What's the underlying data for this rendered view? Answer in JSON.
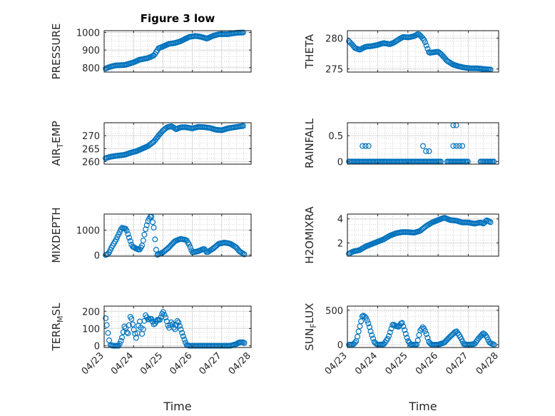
{
  "figure": {
    "title": "Figure 3 low"
  },
  "colors": {
    "marker": "#0072BD",
    "axis": "#262626",
    "grid": "#d9d9d9",
    "minor_grid": "#b0b0b0"
  },
  "chart_data": [
    {
      "type": "scatter",
      "panel": "top-left",
      "ylabel": "PRESSURE",
      "title": "Figure 3 low",
      "ylim": [
        775,
        1010
      ],
      "yticks": [
        800,
        900,
        1000
      ],
      "xlim": [
        0,
        5
      ],
      "show_xticks": false,
      "grid": true,
      "x_start": 0.05,
      "x_end": 4.75,
      "y_anchors": [
        [
          0.05,
          795
        ],
        [
          0.2,
          805
        ],
        [
          0.4,
          813
        ],
        [
          0.7,
          815
        ],
        [
          1.0,
          830
        ],
        [
          1.2,
          845
        ],
        [
          1.5,
          855
        ],
        [
          1.7,
          870
        ],
        [
          1.85,
          910
        ],
        [
          2.0,
          920
        ],
        [
          2.2,
          935
        ],
        [
          2.4,
          940
        ],
        [
          2.6,
          950
        ],
        [
          2.9,
          975
        ],
        [
          3.1,
          980
        ],
        [
          3.3,
          975
        ],
        [
          3.5,
          965
        ],
        [
          3.7,
          980
        ],
        [
          3.9,
          990
        ],
        [
          4.2,
          990
        ],
        [
          4.5,
          998
        ],
        [
          4.75,
          1000
        ]
      ]
    },
    {
      "type": "scatter",
      "panel": "top-right",
      "ylabel": "THETA",
      "ylim": [
        274.5,
        281.2
      ],
      "yticks": [
        275,
        280
      ],
      "xlim": [
        0,
        5
      ],
      "show_xticks": false,
      "grid": true,
      "x_start": 0.05,
      "x_end": 4.75,
      "y_anchors": [
        [
          0.05,
          279.5
        ],
        [
          0.15,
          279.0
        ],
        [
          0.25,
          278.4
        ],
        [
          0.4,
          278.1
        ],
        [
          0.6,
          278.6
        ],
        [
          0.8,
          278.7
        ],
        [
          1.0,
          278.9
        ],
        [
          1.2,
          279.2
        ],
        [
          1.4,
          279.0
        ],
        [
          1.55,
          279.3
        ],
        [
          1.7,
          279.8
        ],
        [
          1.85,
          280.2
        ],
        [
          2.0,
          280.1
        ],
        [
          2.2,
          280.3
        ],
        [
          2.35,
          280.7
        ],
        [
          2.45,
          280.2
        ],
        [
          2.55,
          279.6
        ],
        [
          2.7,
          277.6
        ],
        [
          2.85,
          277.7
        ],
        [
          3.0,
          277.8
        ],
        [
          3.1,
          277.4
        ],
        [
          3.3,
          276.3
        ],
        [
          3.5,
          275.7
        ],
        [
          3.7,
          275.4
        ],
        [
          3.9,
          275.2
        ],
        [
          4.1,
          275.1
        ],
        [
          4.3,
          275.1
        ],
        [
          4.5,
          275.0
        ],
        [
          4.75,
          274.9
        ]
      ]
    },
    {
      "type": "scatter",
      "panel": "row2-left",
      "ylabel": "AIR_TEMP",
      "ylim": [
        259,
        275
      ],
      "yticks": [
        260,
        265,
        270
      ],
      "xlim": [
        0,
        5
      ],
      "show_xticks": false,
      "grid": true,
      "x_start": 0.05,
      "x_end": 4.75,
      "y_anchors": [
        [
          0.05,
          261.3
        ],
        [
          0.2,
          261.8
        ],
        [
          0.4,
          262.2
        ],
        [
          0.7,
          262.6
        ],
        [
          0.9,
          263.4
        ],
        [
          1.1,
          264.0
        ],
        [
          1.3,
          265.0
        ],
        [
          1.5,
          266.0
        ],
        [
          1.7,
          267.8
        ],
        [
          1.85,
          270.0
        ],
        [
          2.0,
          272.0
        ],
        [
          2.15,
          273.3
        ],
        [
          2.3,
          273.6
        ],
        [
          2.45,
          272.5
        ],
        [
          2.6,
          273.2
        ],
        [
          2.75,
          273.3
        ],
        [
          3.0,
          272.8
        ],
        [
          3.2,
          273.4
        ],
        [
          3.4,
          273.3
        ],
        [
          3.6,
          273.0
        ],
        [
          3.8,
          272.3
        ],
        [
          4.0,
          272.1
        ],
        [
          4.2,
          272.8
        ],
        [
          4.4,
          273.2
        ],
        [
          4.75,
          273.8
        ]
      ]
    },
    {
      "type": "scatter",
      "panel": "row2-right",
      "ylabel": "RAINFALL",
      "ylim": [
        -0.05,
        0.75
      ],
      "yticks": [
        0,
        0.5
      ],
      "xlim": [
        0,
        5
      ],
      "show_xticks": false,
      "grid": true,
      "zero_segments": [
        [
          0.05,
          3.1
        ],
        [
          3.3,
          4.0
        ],
        [
          4.4,
          4.85
        ]
      ],
      "points": [
        [
          0.5,
          0.3
        ],
        [
          0.6,
          0.3
        ],
        [
          0.7,
          0.3
        ],
        [
          2.5,
          0.3
        ],
        [
          2.6,
          0.2
        ],
        [
          2.7,
          0.2
        ],
        [
          3.5,
          0.7
        ],
        [
          3.6,
          0.7
        ],
        [
          3.5,
          0.3
        ],
        [
          3.6,
          0.3
        ],
        [
          3.7,
          0.3
        ],
        [
          3.8,
          0.3
        ]
      ]
    },
    {
      "type": "scatter",
      "panel": "row3-left",
      "ylabel": "MIXDEPTH",
      "ylim": [
        -50,
        1650
      ],
      "yticks": [
        0,
        1000
      ],
      "xlim": [
        0,
        5
      ],
      "show_xticks": false,
      "grid": true,
      "x_start": 0.05,
      "x_end": 4.8,
      "y_anchors": [
        [
          0.05,
          0
        ],
        [
          0.15,
          50
        ],
        [
          0.25,
          300
        ],
        [
          0.4,
          600
        ],
        [
          0.5,
          850
        ],
        [
          0.6,
          1100
        ],
        [
          0.75,
          1050
        ],
        [
          0.85,
          700
        ],
        [
          0.95,
          350
        ],
        [
          1.1,
          250
        ],
        [
          1.2,
          200
        ],
        [
          1.3,
          400
        ],
        [
          1.4,
          1000
        ],
        [
          1.5,
          1400
        ],
        [
          1.6,
          1600
        ],
        [
          1.7,
          1050
        ],
        [
          1.75,
          350
        ],
        [
          1.8,
          0
        ],
        [
          2.0,
          100
        ],
        [
          2.2,
          300
        ],
        [
          2.4,
          550
        ],
        [
          2.6,
          650
        ],
        [
          2.8,
          600
        ],
        [
          2.9,
          400
        ],
        [
          3.0,
          100
        ],
        [
          3.2,
          150
        ],
        [
          3.4,
          250
        ],
        [
          3.5,
          100
        ],
        [
          3.7,
          250
        ],
        [
          3.9,
          450
        ],
        [
          4.1,
          500
        ],
        [
          4.3,
          450
        ],
        [
          4.5,
          300
        ],
        [
          4.6,
          150
        ],
        [
          4.8,
          0
        ]
      ]
    },
    {
      "type": "scatter",
      "panel": "row3-right",
      "ylabel": "H2OMIXRA",
      "ylim": [
        0.9,
        4.4
      ],
      "yticks": [
        2,
        4
      ],
      "xlim": [
        0,
        5
      ],
      "show_xticks": false,
      "grid": true,
      "x_start": 0.05,
      "x_end": 4.75,
      "y_anchors": [
        [
          0.05,
          1.1
        ],
        [
          0.2,
          1.3
        ],
        [
          0.4,
          1.4
        ],
        [
          0.6,
          1.7
        ],
        [
          0.8,
          1.9
        ],
        [
          1.0,
          2.1
        ],
        [
          1.2,
          2.3
        ],
        [
          1.4,
          2.6
        ],
        [
          1.6,
          2.8
        ],
        [
          1.8,
          2.9
        ],
        [
          2.0,
          2.9
        ],
        [
          2.2,
          2.85
        ],
        [
          2.4,
          3.0
        ],
        [
          2.6,
          3.4
        ],
        [
          2.8,
          3.7
        ],
        [
          3.0,
          3.9
        ],
        [
          3.2,
          4.1
        ],
        [
          3.4,
          3.9
        ],
        [
          3.6,
          3.85
        ],
        [
          3.8,
          3.7
        ],
        [
          4.0,
          3.7
        ],
        [
          4.2,
          3.6
        ],
        [
          4.4,
          3.7
        ],
        [
          4.5,
          3.6
        ],
        [
          4.6,
          3.9
        ],
        [
          4.75,
          3.7
        ]
      ]
    },
    {
      "type": "scatter",
      "panel": "bottom-left",
      "ylabel": "TERR_MSL",
      "ylim": [
        -10,
        230
      ],
      "yticks": [
        0,
        100,
        200
      ],
      "xlim": [
        0,
        5
      ],
      "show_xticks": true,
      "grid": true,
      "xticks": [
        0,
        1,
        2,
        3,
        4,
        5
      ],
      "xticklabels": [
        "04/23",
        "04/24",
        "04/25",
        "04/26",
        "04/27",
        "04/28"
      ],
      "xlabel": "Time",
      "x_start": 0.05,
      "x_end": 4.8,
      "y_anchors": [
        [
          0.05,
          160
        ],
        [
          0.1,
          110
        ],
        [
          0.15,
          50
        ],
        [
          0.2,
          5
        ],
        [
          0.3,
          0
        ],
        [
          0.5,
          0
        ],
        [
          0.6,
          40
        ],
        [
          0.7,
          120
        ],
        [
          0.8,
          60
        ],
        [
          0.9,
          180
        ],
        [
          1.0,
          100
        ],
        [
          1.1,
          40
        ],
        [
          1.2,
          150
        ],
        [
          1.3,
          60
        ],
        [
          1.4,
          180
        ],
        [
          1.5,
          150
        ],
        [
          1.6,
          160
        ],
        [
          1.7,
          120
        ],
        [
          1.8,
          150
        ],
        [
          1.9,
          150
        ],
        [
          2.0,
          200
        ],
        [
          2.1,
          160
        ],
        [
          2.2,
          100
        ],
        [
          2.3,
          140
        ],
        [
          2.4,
          90
        ],
        [
          2.5,
          150
        ],
        [
          2.6,
          100
        ],
        [
          2.7,
          50
        ],
        [
          2.8,
          5
        ],
        [
          2.9,
          0
        ],
        [
          3.5,
          0
        ],
        [
          4.0,
          0
        ],
        [
          4.3,
          0
        ],
        [
          4.5,
          10
        ],
        [
          4.6,
          20
        ],
        [
          4.75,
          20
        ],
        [
          4.8,
          10
        ]
      ]
    },
    {
      "type": "scatter",
      "panel": "bottom-right",
      "ylabel": "SUN_FLUX",
      "ylim": [
        -40,
        560
      ],
      "yticks": [
        0,
        500
      ],
      "xlim": [
        0,
        5
      ],
      "show_xticks": true,
      "grid": true,
      "xticks": [
        0,
        1,
        2,
        3,
        4,
        5
      ],
      "xticklabels": [
        "04/23",
        "04/24",
        "04/25",
        "04/26",
        "04/27",
        "04/28"
      ],
      "xlabel": "Time",
      "x_start": 0.05,
      "x_end": 4.85,
      "y_anchors": [
        [
          0.05,
          0
        ],
        [
          0.2,
          5
        ],
        [
          0.3,
          60
        ],
        [
          0.4,
          250
        ],
        [
          0.5,
          430
        ],
        [
          0.6,
          400
        ],
        [
          0.7,
          300
        ],
        [
          0.8,
          150
        ],
        [
          0.9,
          30
        ],
        [
          1.0,
          0
        ],
        [
          1.2,
          5
        ],
        [
          1.35,
          100
        ],
        [
          1.5,
          300
        ],
        [
          1.6,
          270
        ],
        [
          1.7,
          260
        ],
        [
          1.8,
          330
        ],
        [
          1.9,
          200
        ],
        [
          2.0,
          60
        ],
        [
          2.1,
          0
        ],
        [
          2.3,
          5
        ],
        [
          2.4,
          200
        ],
        [
          2.5,
          260
        ],
        [
          2.6,
          170
        ],
        [
          2.7,
          30
        ],
        [
          2.8,
          0
        ],
        [
          3.0,
          0
        ],
        [
          3.2,
          30
        ],
        [
          3.4,
          120
        ],
        [
          3.6,
          200
        ],
        [
          3.75,
          100
        ],
        [
          3.85,
          10
        ],
        [
          4.0,
          0
        ],
        [
          4.2,
          10
        ],
        [
          4.35,
          100
        ],
        [
          4.5,
          170
        ],
        [
          4.6,
          120
        ],
        [
          4.7,
          30
        ],
        [
          4.85,
          0
        ]
      ]
    }
  ]
}
